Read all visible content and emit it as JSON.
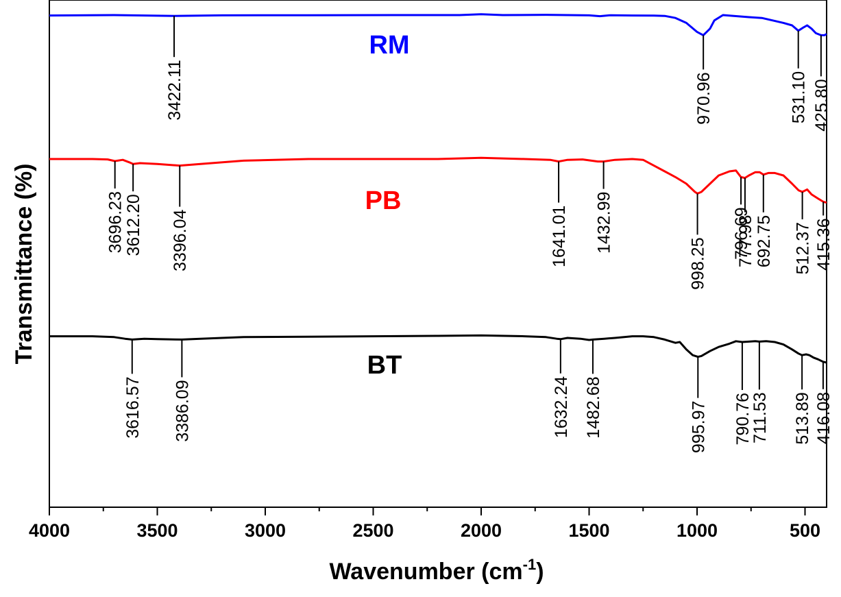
{
  "chart_data": {
    "type": "line",
    "xlabel": "Wavenumber (cm",
    "xlabel_superscript": "-1",
    "xlabel_close": ")",
    "ylabel": "Transmittance (%)",
    "xlim": [
      4000,
      400
    ],
    "x_reversed": true,
    "xticks": [
      4000,
      3500,
      3000,
      2500,
      2000,
      1500,
      1000,
      500
    ],
    "xtick_labels": [
      "4000",
      "3500",
      "3000",
      "2500",
      "2000",
      "1500",
      "1000",
      "500"
    ],
    "y_ticks_shown": false,
    "grid": false,
    "series": [
      {
        "name": "RM",
        "color": "#0000ff",
        "points": [
          [
            4000,
            0.96
          ],
          [
            3700,
            0.965
          ],
          [
            3422,
            0.955
          ],
          [
            3200,
            0.962
          ],
          [
            2800,
            0.963
          ],
          [
            2400,
            0.965
          ],
          [
            2100,
            0.965
          ],
          [
            2000,
            0.975
          ],
          [
            1900,
            0.965
          ],
          [
            1700,
            0.968
          ],
          [
            1500,
            0.962
          ],
          [
            1450,
            0.952
          ],
          [
            1400,
            0.963
          ],
          [
            1300,
            0.96
          ],
          [
            1200,
            0.958
          ],
          [
            1150,
            0.955
          ],
          [
            1100,
            0.93
          ],
          [
            1050,
            0.87
          ],
          [
            1000,
            0.76
          ],
          [
            970.96,
            0.72
          ],
          [
            940,
            0.8
          ],
          [
            920,
            0.9
          ],
          [
            880,
            0.965
          ],
          [
            830,
            0.955
          ],
          [
            760,
            0.94
          ],
          [
            700,
            0.93
          ],
          [
            650,
            0.9
          ],
          [
            600,
            0.87
          ],
          [
            560,
            0.84
          ],
          [
            531.1,
            0.775
          ],
          [
            510,
            0.81
          ],
          [
            490,
            0.84
          ],
          [
            470,
            0.8
          ],
          [
            450,
            0.745
          ],
          [
            425.8,
            0.72
          ],
          [
            410,
            0.72
          ],
          [
            400,
            0.735
          ]
        ],
        "peaks": [
          {
            "x": 3422.11,
            "label": "3422.11"
          },
          {
            "x": 970.96,
            "label": "970.96"
          },
          {
            "x": 531.1,
            "label": "531.10"
          },
          {
            "x": 425.8,
            "label": "425.80"
          }
        ]
      },
      {
        "name": "PB",
        "color": "#ff0000",
        "points": [
          [
            4000,
            0.0
          ],
          [
            3800,
            0.0
          ],
          [
            3730,
            -0.005
          ],
          [
            3696.23,
            -0.025
          ],
          [
            3660,
            -0.01
          ],
          [
            3630,
            -0.04
          ],
          [
            3612.2,
            -0.06
          ],
          [
            3580,
            -0.05
          ],
          [
            3500,
            -0.06
          ],
          [
            3396.04,
            -0.08
          ],
          [
            3300,
            -0.06
          ],
          [
            3100,
            -0.02
          ],
          [
            2800,
            0.0
          ],
          [
            2500,
            0.0
          ],
          [
            2200,
            0.0
          ],
          [
            2000,
            0.015
          ],
          [
            1800,
            0.0
          ],
          [
            1680,
            -0.01
          ],
          [
            1641.01,
            -0.03
          ],
          [
            1600,
            -0.01
          ],
          [
            1530,
            -0.005
          ],
          [
            1460,
            -0.03
          ],
          [
            1432.99,
            -0.03
          ],
          [
            1380,
            -0.01
          ],
          [
            1300,
            0.0
          ],
          [
            1250,
            -0.01
          ],
          [
            1200,
            -0.08
          ],
          [
            1150,
            -0.15
          ],
          [
            1100,
            -0.22
          ],
          [
            1050,
            -0.3
          ],
          [
            1010,
            -0.4
          ],
          [
            998.25,
            -0.42
          ],
          [
            980,
            -0.4
          ],
          [
            940,
            -0.3
          ],
          [
            900,
            -0.2
          ],
          [
            850,
            -0.15
          ],
          [
            820,
            -0.14
          ],
          [
            796.69,
            -0.22
          ],
          [
            777.98,
            -0.23
          ],
          [
            760,
            -0.2
          ],
          [
            730,
            -0.16
          ],
          [
            710,
            -0.16
          ],
          [
            692.75,
            -0.19
          ],
          [
            670,
            -0.17
          ],
          [
            640,
            -0.17
          ],
          [
            600,
            -0.2
          ],
          [
            560,
            -0.3
          ],
          [
            530,
            -0.38
          ],
          [
            512.37,
            -0.4
          ],
          [
            490,
            -0.37
          ],
          [
            470,
            -0.43
          ],
          [
            440,
            -0.48
          ],
          [
            415.36,
            -0.52
          ],
          [
            400,
            -0.53
          ]
        ],
        "peaks": [
          {
            "x": 3696.23,
            "label": "3696.23"
          },
          {
            "x": 3612.2,
            "label": "3612.20"
          },
          {
            "x": 3396.04,
            "label": "3396.04"
          },
          {
            "x": 1641.01,
            "label": "1641.01"
          },
          {
            "x": 1432.99,
            "label": "1432.99"
          },
          {
            "x": 998.25,
            "label": "998.25"
          },
          {
            "x": 796.69,
            "label": "796.69"
          },
          {
            "x": 777.98,
            "label": "777.98"
          },
          {
            "x": 692.75,
            "label": "692.75"
          },
          {
            "x": 512.37,
            "label": "512.37"
          },
          {
            "x": 415.36,
            "label": "415.36"
          }
        ]
      },
      {
        "name": "BT",
        "color": "#000000",
        "points": [
          [
            4000,
            -0.82
          ],
          [
            3800,
            -0.82
          ],
          [
            3700,
            -0.83
          ],
          [
            3650,
            -0.85
          ],
          [
            3616.57,
            -0.86
          ],
          [
            3560,
            -0.85
          ],
          [
            3500,
            -0.855
          ],
          [
            3386.09,
            -0.86
          ],
          [
            3300,
            -0.85
          ],
          [
            3100,
            -0.83
          ],
          [
            2800,
            -0.825
          ],
          [
            2500,
            -0.82
          ],
          [
            2200,
            -0.815
          ],
          [
            2000,
            -0.81
          ],
          [
            1800,
            -0.82
          ],
          [
            1700,
            -0.83
          ],
          [
            1650,
            -0.85
          ],
          [
            1632.24,
            -0.855
          ],
          [
            1600,
            -0.84
          ],
          [
            1540,
            -0.85
          ],
          [
            1500,
            -0.865
          ],
          [
            1482.68,
            -0.86
          ],
          [
            1430,
            -0.85
          ],
          [
            1380,
            -0.84
          ],
          [
            1300,
            -0.82
          ],
          [
            1250,
            -0.82
          ],
          [
            1200,
            -0.83
          ],
          [
            1150,
            -0.86
          ],
          [
            1100,
            -0.9
          ],
          [
            1080,
            -0.89
          ],
          [
            1050,
            -0.98
          ],
          [
            1020,
            -1.05
          ],
          [
            995.97,
            -1.07
          ],
          [
            980,
            -1.06
          ],
          [
            940,
            -1.0
          ],
          [
            900,
            -0.95
          ],
          [
            850,
            -0.91
          ],
          [
            820,
            -0.88
          ],
          [
            790.76,
            -0.89
          ],
          [
            760,
            -0.885
          ],
          [
            730,
            -0.88
          ],
          [
            711.53,
            -0.885
          ],
          [
            680,
            -0.88
          ],
          [
            640,
            -0.89
          ],
          [
            600,
            -0.92
          ],
          [
            560,
            -0.98
          ],
          [
            530,
            -1.03
          ],
          [
            513.89,
            -1.05
          ],
          [
            495,
            -1.04
          ],
          [
            480,
            -1.05
          ],
          [
            460,
            -1.08
          ],
          [
            440,
            -1.1
          ],
          [
            416.08,
            -1.13
          ],
          [
            400,
            -1.14
          ]
        ],
        "peaks": [
          {
            "x": 3616.57,
            "label": "3616.57"
          },
          {
            "x": 3386.09,
            "label": "3386.09"
          },
          {
            "x": 1632.24,
            "label": "1632.24"
          },
          {
            "x": 1482.68,
            "label": "1482.68"
          },
          {
            "x": 995.97,
            "label": "995.97"
          },
          {
            "x": 790.76,
            "label": "790.76"
          },
          {
            "x": 711.53,
            "label": "711.53"
          },
          {
            "x": 513.89,
            "label": "513.89"
          },
          {
            "x": 416.08,
            "label": "416.08"
          }
        ]
      }
    ]
  }
}
